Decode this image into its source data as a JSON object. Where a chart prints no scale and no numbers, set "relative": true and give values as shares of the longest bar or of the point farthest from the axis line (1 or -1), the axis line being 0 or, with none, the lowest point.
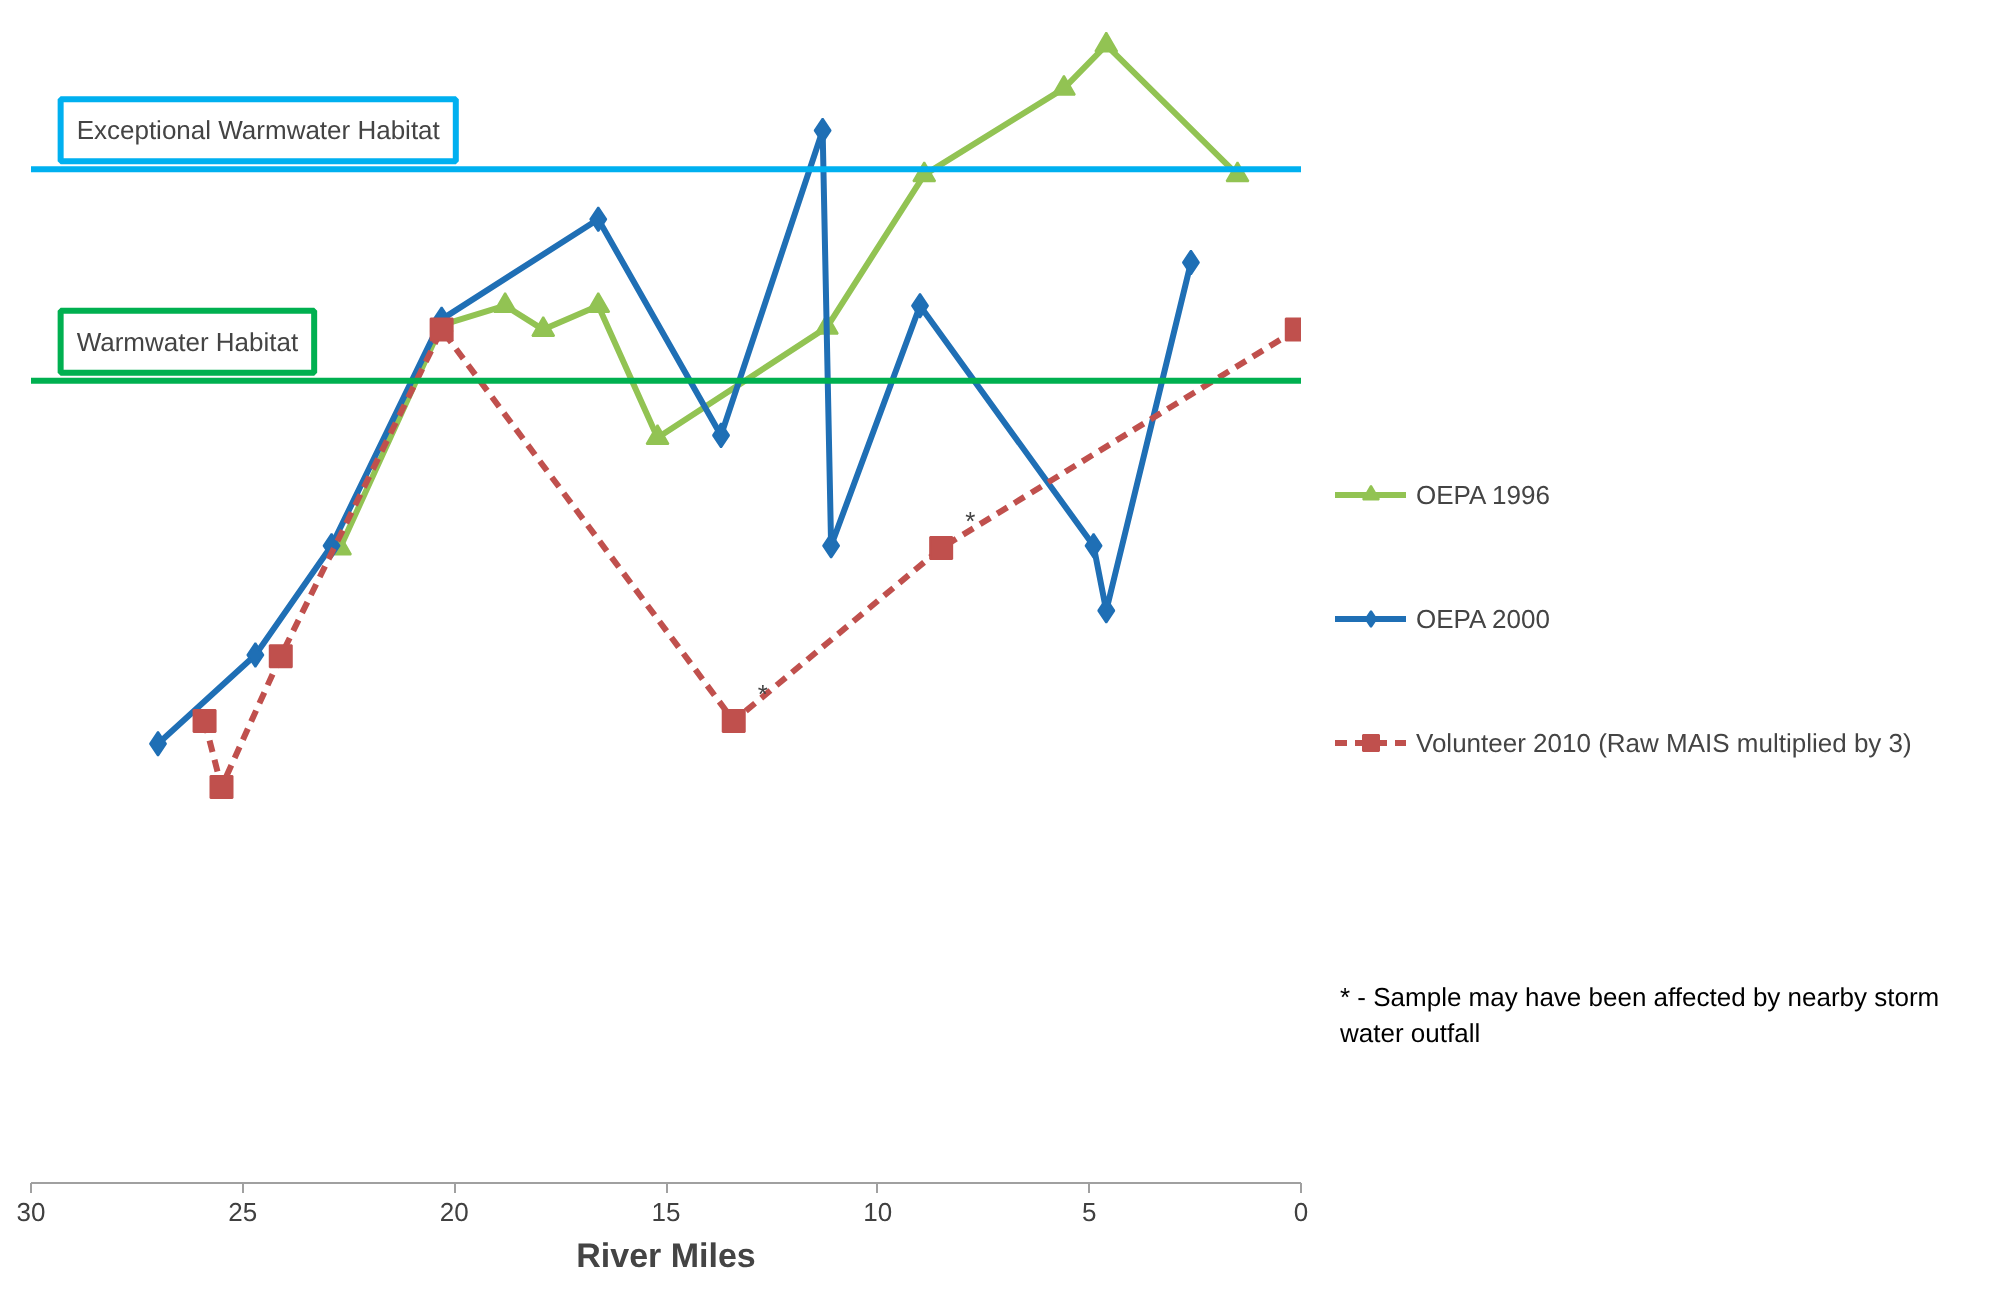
{
  "chart_data": {
    "type": "line",
    "relative": true,
    "xlabel": "River Miles",
    "xlim": [
      30,
      0
    ],
    "xticks": [
      30,
      25,
      20,
      15,
      10,
      5,
      0
    ],
    "grid": false,
    "legend": "right",
    "series": [
      {
        "name": "OEPA 1996",
        "color": "#92c353",
        "marker": "triangle",
        "line_style": "solid",
        "x": [
          22.7,
          20.3,
          18.8,
          17.9,
          16.6,
          15.2,
          11.2,
          8.9,
          5.6,
          4.6,
          1.5
        ],
        "values": [
          0.558,
          0.754,
          0.771,
          0.75,
          0.771,
          0.655,
          0.752,
          0.886,
          0.962,
          1.0,
          0.886
        ]
      },
      {
        "name": "OEPA 2000",
        "color": "#1f6fb5",
        "marker": "diamond",
        "line_style": "solid",
        "x": [
          27.0,
          24.7,
          22.9,
          20.3,
          16.6,
          13.7,
          11.3,
          11.1,
          9.0,
          4.9,
          4.6,
          2.6
        ],
        "values": [
          0.386,
          0.464,
          0.56,
          0.759,
          0.847,
          0.657,
          0.925,
          0.56,
          0.771,
          0.56,
          0.503,
          0.809
        ]
      },
      {
        "name": "Volunteer 2010 (Raw MAIS multiplied by 3)",
        "color": "#c0504d",
        "marker": "square",
        "line_style": "dashed",
        "x": [
          25.9,
          25.5,
          24.1,
          20.3,
          13.4,
          8.5,
          0.1
        ],
        "values": [
          0.406,
          0.348,
          0.463,
          0.75,
          0.406,
          0.558,
          0.75
        ]
      }
    ],
    "ref_lines": [
      {
        "axis": "y",
        "value": 0.891,
        "label": "Exceptional Warmwater Habitat",
        "color": "#00b0f0",
        "line_style": "solid"
      },
      {
        "axis": "y",
        "value": 0.705,
        "label": "Warmwater Habitat",
        "color": "#00b050",
        "line_style": "solid"
      }
    ],
    "annotations": [
      {
        "text": "*",
        "x": 13.4,
        "y": 0.406
      },
      {
        "text": "*",
        "x": 8.5,
        "y": 0.558
      },
      "* - Sample may have been affected by nearby storm water outfall"
    ]
  }
}
